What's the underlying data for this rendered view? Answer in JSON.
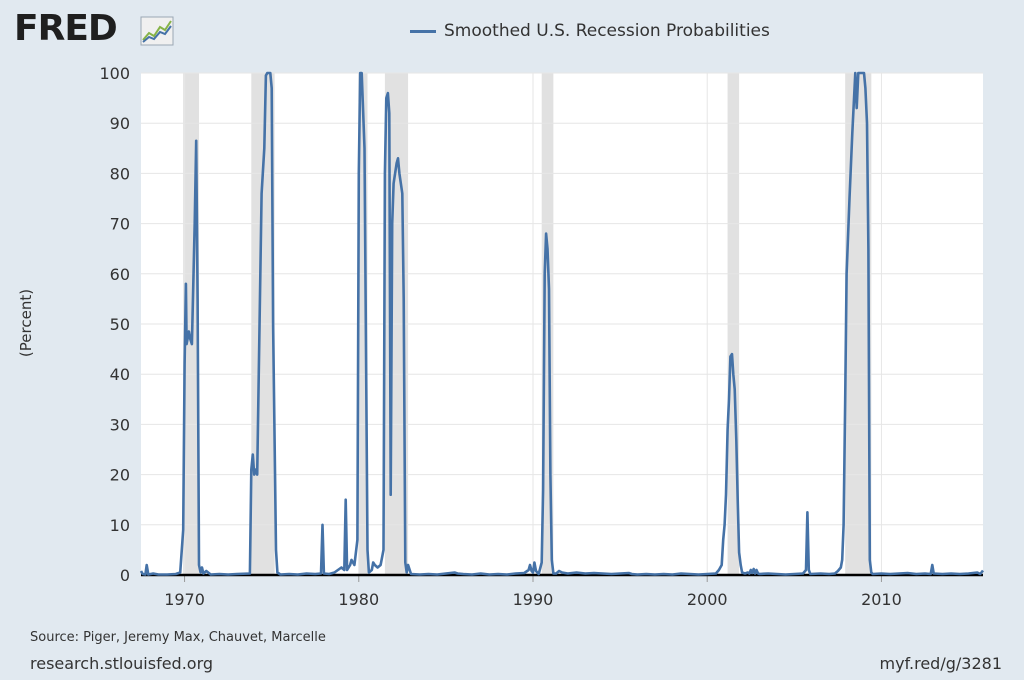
{
  "brand": {
    "logo_text": "FRED",
    "logo_icon": "trend-chart-icon"
  },
  "colors": {
    "series": "#4572a7",
    "recession": "#e1e1e1",
    "background": "#e1e9f0",
    "plot": "#ffffff"
  },
  "footer": {
    "source": "Source: Piger, Jeremy Max, Chauvet, Marcelle",
    "site": "research.stlouisfed.org",
    "short_url": "myf.red/g/3281"
  },
  "chart_data": {
    "type": "line",
    "title": "",
    "xlabel": "",
    "ylabel": "(Percent)",
    "xlim": [
      1967.5,
      2015.83
    ],
    "ylim": [
      0,
      100
    ],
    "y_ticks": [
      0,
      10,
      20,
      30,
      40,
      50,
      60,
      70,
      80,
      90,
      100
    ],
    "x_ticks": [
      1970,
      1980,
      1990,
      2000,
      2010
    ],
    "grid": true,
    "legend_position": "top-center",
    "recession_shading": [
      [
        1969.92,
        1970.83
      ],
      [
        1973.83,
        1975.17
      ],
      [
        1980.0,
        1980.5
      ],
      [
        1981.5,
        1982.83
      ],
      [
        1990.5,
        1991.17
      ],
      [
        2001.17,
        2001.83
      ],
      [
        2007.92,
        2009.42
      ]
    ],
    "series": [
      {
        "name": "Smoothed U.S. Recession Probabilities",
        "points": [
          [
            1967.5,
            0.8
          ],
          [
            1967.6,
            0.2
          ],
          [
            1967.75,
            0.1
          ],
          [
            1967.83,
            2.0
          ],
          [
            1967.92,
            0.1
          ],
          [
            1968.2,
            0.3
          ],
          [
            1968.5,
            0.1
          ],
          [
            1969.0,
            0.1
          ],
          [
            1969.5,
            0.2
          ],
          [
            1969.75,
            0.5
          ],
          [
            1969.92,
            9.0
          ],
          [
            1970.0,
            42.0
          ],
          [
            1970.08,
            58.0
          ],
          [
            1970.12,
            46.0
          ],
          [
            1970.25,
            48.5
          ],
          [
            1970.33,
            47.0
          ],
          [
            1970.42,
            46.0
          ],
          [
            1970.58,
            70.0
          ],
          [
            1970.67,
            86.5
          ],
          [
            1970.75,
            55.0
          ],
          [
            1970.83,
            2.0
          ],
          [
            1970.92,
            0.5
          ],
          [
            1971.0,
            1.5
          ],
          [
            1971.08,
            0.3
          ],
          [
            1971.25,
            0.8
          ],
          [
            1971.5,
            0.1
          ],
          [
            1972.0,
            0.2
          ],
          [
            1972.5,
            0.1
          ],
          [
            1973.0,
            0.2
          ],
          [
            1973.75,
            0.3
          ],
          [
            1973.83,
            21.0
          ],
          [
            1973.92,
            24.0
          ],
          [
            1974.0,
            20.0
          ],
          [
            1974.08,
            21.0
          ],
          [
            1974.17,
            20.0
          ],
          [
            1974.25,
            38.0
          ],
          [
            1974.42,
            76.0
          ],
          [
            1974.58,
            85.0
          ],
          [
            1974.67,
            99.5
          ],
          [
            1974.75,
            100.0
          ],
          [
            1974.92,
            100.0
          ],
          [
            1975.0,
            97.0
          ],
          [
            1975.08,
            50.0
          ],
          [
            1975.25,
            5.0
          ],
          [
            1975.33,
            0.5
          ],
          [
            1975.5,
            0.1
          ],
          [
            1976.0,
            0.2
          ],
          [
            1976.5,
            0.1
          ],
          [
            1977.0,
            0.3
          ],
          [
            1977.5,
            0.2
          ],
          [
            1977.83,
            0.3
          ],
          [
            1977.92,
            10.0
          ],
          [
            1978.0,
            0.3
          ],
          [
            1978.3,
            0.2
          ],
          [
            1978.6,
            0.5
          ],
          [
            1978.8,
            1.0
          ],
          [
            1979.0,
            1.5
          ],
          [
            1979.17,
            1.0
          ],
          [
            1979.25,
            15.0
          ],
          [
            1979.33,
            1.0
          ],
          [
            1979.5,
            2.0
          ],
          [
            1979.58,
            3.0
          ],
          [
            1979.75,
            2.0
          ],
          [
            1979.92,
            7.0
          ],
          [
            1980.0,
            80.0
          ],
          [
            1980.08,
            100.0
          ],
          [
            1980.17,
            100.0
          ],
          [
            1980.33,
            85.0
          ],
          [
            1980.5,
            5.0
          ],
          [
            1980.58,
            0.5
          ],
          [
            1980.75,
            1.0
          ],
          [
            1980.83,
            2.5
          ],
          [
            1980.92,
            2.0
          ],
          [
            1981.08,
            1.5
          ],
          [
            1981.25,
            2.0
          ],
          [
            1981.42,
            5.0
          ],
          [
            1981.5,
            80.0
          ],
          [
            1981.58,
            95.0
          ],
          [
            1981.67,
            96.0
          ],
          [
            1981.75,
            92.0
          ],
          [
            1981.83,
            16.0
          ],
          [
            1981.92,
            70.0
          ],
          [
            1982.0,
            78.0
          ],
          [
            1982.17,
            82.0
          ],
          [
            1982.25,
            83.0
          ],
          [
            1982.33,
            80.0
          ],
          [
            1982.5,
            76.0
          ],
          [
            1982.58,
            55.0
          ],
          [
            1982.67,
            2.5
          ],
          [
            1982.75,
            0.5
          ],
          [
            1982.83,
            2.0
          ],
          [
            1983.0,
            0.2
          ],
          [
            1983.5,
            0.1
          ],
          [
            1984.0,
            0.2
          ],
          [
            1984.5,
            0.1
          ],
          [
            1985.0,
            0.3
          ],
          [
            1985.5,
            0.5
          ],
          [
            1985.67,
            0.3
          ],
          [
            1986.0,
            0.2
          ],
          [
            1986.5,
            0.1
          ],
          [
            1987.0,
            0.3
          ],
          [
            1987.5,
            0.1
          ],
          [
            1988.0,
            0.2
          ],
          [
            1988.5,
            0.1
          ],
          [
            1989.0,
            0.3
          ],
          [
            1989.5,
            0.4
          ],
          [
            1989.75,
            1.0
          ],
          [
            1989.83,
            2.0
          ],
          [
            1989.92,
            0.8
          ],
          [
            1990.0,
            0.5
          ],
          [
            1990.08,
            2.5
          ],
          [
            1990.17,
            0.8
          ],
          [
            1990.33,
            0.2
          ],
          [
            1990.5,
            2.5
          ],
          [
            1990.58,
            17.0
          ],
          [
            1990.67,
            60.0
          ],
          [
            1990.75,
            68.0
          ],
          [
            1990.83,
            65.0
          ],
          [
            1990.92,
            57.0
          ],
          [
            1991.0,
            20.0
          ],
          [
            1991.08,
            3.0
          ],
          [
            1991.17,
            0.3
          ],
          [
            1991.33,
            0.3
          ],
          [
            1991.5,
            0.8
          ],
          [
            1991.67,
            0.5
          ],
          [
            1992.0,
            0.3
          ],
          [
            1992.5,
            0.5
          ],
          [
            1993.0,
            0.3
          ],
          [
            1993.5,
            0.4
          ],
          [
            1994.0,
            0.3
          ],
          [
            1994.5,
            0.2
          ],
          [
            1995.0,
            0.3
          ],
          [
            1995.5,
            0.4
          ],
          [
            1995.67,
            0.2
          ],
          [
            1996.0,
            0.1
          ],
          [
            1996.5,
            0.2
          ],
          [
            1997.0,
            0.1
          ],
          [
            1997.5,
            0.2
          ],
          [
            1998.0,
            0.1
          ],
          [
            1998.5,
            0.3
          ],
          [
            1999.0,
            0.2
          ],
          [
            1999.5,
            0.1
          ],
          [
            2000.0,
            0.2
          ],
          [
            2000.5,
            0.3
          ],
          [
            2000.67,
            1.0
          ],
          [
            2000.83,
            2.0
          ],
          [
            2000.92,
            7.0
          ],
          [
            2001.0,
            10.0
          ],
          [
            2001.08,
            16.0
          ],
          [
            2001.17,
            29.0
          ],
          [
            2001.25,
            35.0
          ],
          [
            2001.33,
            43.5
          ],
          [
            2001.42,
            44.0
          ],
          [
            2001.5,
            40.0
          ],
          [
            2001.58,
            37.0
          ],
          [
            2001.67,
            27.0
          ],
          [
            2001.75,
            15.0
          ],
          [
            2001.83,
            4.5
          ],
          [
            2001.92,
            2.0
          ],
          [
            2002.0,
            0.5
          ],
          [
            2002.17,
            0.3
          ],
          [
            2002.33,
            0.5
          ],
          [
            2002.42,
            0.3
          ],
          [
            2002.5,
            1.0
          ],
          [
            2002.58,
            0.4
          ],
          [
            2002.67,
            1.2
          ],
          [
            2002.75,
            0.3
          ],
          [
            2002.83,
            1.0
          ],
          [
            2002.92,
            0.3
          ],
          [
            2003.0,
            0.2
          ],
          [
            2003.5,
            0.3
          ],
          [
            2004.0,
            0.2
          ],
          [
            2004.5,
            0.1
          ],
          [
            2005.0,
            0.2
          ],
          [
            2005.5,
            0.3
          ],
          [
            2005.67,
            1.0
          ],
          [
            2005.75,
            12.5
          ],
          [
            2005.83,
            1.0
          ],
          [
            2005.92,
            0.2
          ],
          [
            2006.5,
            0.3
          ],
          [
            2007.0,
            0.2
          ],
          [
            2007.33,
            0.3
          ],
          [
            2007.5,
            0.8
          ],
          [
            2007.67,
            1.5
          ],
          [
            2007.75,
            3.0
          ],
          [
            2007.83,
            10.0
          ],
          [
            2007.92,
            35.0
          ],
          [
            2008.0,
            60.0
          ],
          [
            2008.17,
            75.0
          ],
          [
            2008.33,
            88.0
          ],
          [
            2008.5,
            100.0
          ],
          [
            2008.58,
            93.0
          ],
          [
            2008.67,
            100.0
          ],
          [
            2008.83,
            100.0
          ],
          [
            2009.0,
            100.0
          ],
          [
            2009.08,
            97.0
          ],
          [
            2009.17,
            90.0
          ],
          [
            2009.25,
            65.0
          ],
          [
            2009.33,
            3.0
          ],
          [
            2009.42,
            0.5
          ],
          [
            2009.5,
            0.2
          ],
          [
            2010.0,
            0.3
          ],
          [
            2010.5,
            0.2
          ],
          [
            2011.0,
            0.3
          ],
          [
            2011.5,
            0.4
          ],
          [
            2012.0,
            0.2
          ],
          [
            2012.5,
            0.3
          ],
          [
            2012.83,
            0.2
          ],
          [
            2012.92,
            2.0
          ],
          [
            2013.0,
            0.3
          ],
          [
            2013.5,
            0.2
          ],
          [
            2014.0,
            0.3
          ],
          [
            2014.5,
            0.2
          ],
          [
            2015.0,
            0.3
          ],
          [
            2015.5,
            0.5
          ],
          [
            2015.67,
            0.2
          ],
          [
            2015.83,
            0.9
          ]
        ]
      }
    ]
  }
}
